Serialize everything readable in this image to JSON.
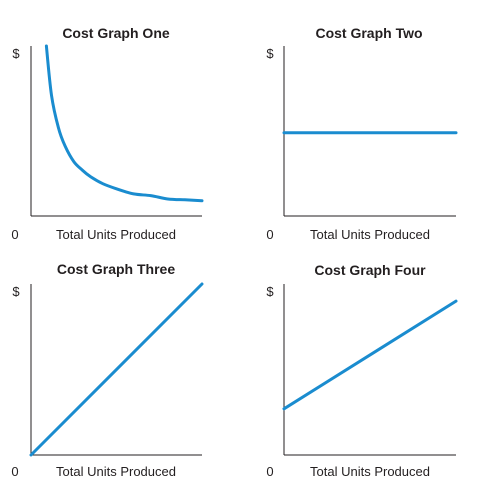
{
  "figure": {
    "line_color": "#1a8ccf"
  },
  "chart_data": [
    {
      "type": "line",
      "title": "Cost Graph One",
      "ylabel": "$",
      "xlabel": "Total Units Produced",
      "origin_label": "0",
      "shape": "decreasing-hyperbolic",
      "x_ticks": false,
      "y_ticks": false,
      "series": [
        {
          "x": [
            0.09,
            0.12,
            0.16,
            0.2,
            0.25,
            0.3,
            0.35,
            0.42,
            0.5,
            0.6,
            0.7,
            0.8,
            0.9,
            1.0
          ],
          "y": [
            1.0,
            0.71,
            0.52,
            0.41,
            0.32,
            0.27,
            0.23,
            0.19,
            0.16,
            0.13,
            0.12,
            0.1,
            0.095,
            0.09
          ]
        }
      ]
    },
    {
      "type": "line",
      "title": "Cost Graph Two",
      "ylabel": "$",
      "xlabel": "Total Units Produced",
      "origin_label": "0",
      "shape": "horizontal",
      "x_ticks": false,
      "y_ticks": false,
      "series": [
        {
          "x": [
            0,
            1
          ],
          "y": [
            0.49,
            0.49
          ]
        }
      ]
    },
    {
      "type": "line",
      "title": "Cost Graph Three",
      "ylabel": "$",
      "xlabel": "Total Units Produced",
      "origin_label": "0",
      "shape": "linear-through-origin",
      "x_ticks": false,
      "y_ticks": false,
      "series": [
        {
          "x": [
            0,
            1
          ],
          "y": [
            0,
            1
          ]
        }
      ]
    },
    {
      "type": "line",
      "title": "Cost Graph Four",
      "ylabel": "$",
      "xlabel": "Total Units Produced",
      "origin_label": "0",
      "shape": "linear-with-intercept",
      "x_ticks": false,
      "y_ticks": false,
      "series": [
        {
          "x": [
            0,
            1
          ],
          "y": [
            0.27,
            0.9
          ]
        }
      ]
    }
  ]
}
